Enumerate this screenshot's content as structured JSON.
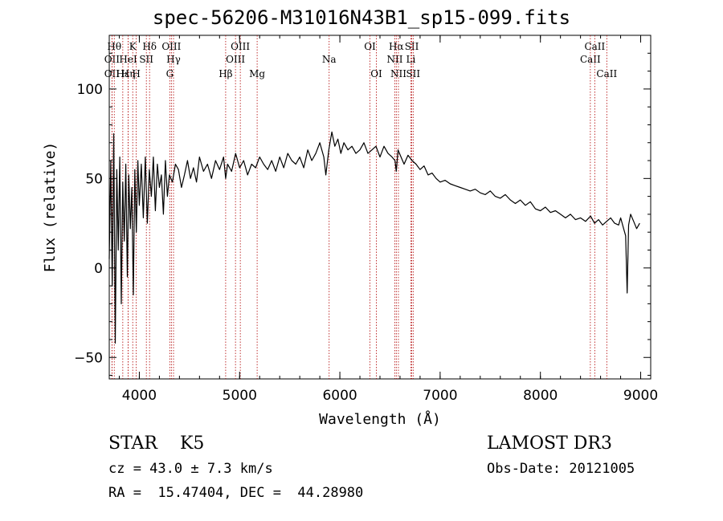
{
  "chart_data": {
    "type": "line",
    "title": "spec-56206-M31016N43B1_sp15-099.fits",
    "xlabel": "Wavelength (Å)",
    "ylabel": "Flux (relative)",
    "xlim": [
      3700,
      9100
    ],
    "ylim": [
      -62,
      130
    ],
    "xticks": [
      4000,
      5000,
      6000,
      7000,
      8000,
      9000
    ],
    "yticks": [
      -50,
      0,
      50,
      100
    ],
    "series": [
      {
        "name": "flux",
        "x": [
          3700,
          3715,
          3730,
          3745,
          3760,
          3775,
          3790,
          3805,
          3820,
          3835,
          3850,
          3865,
          3880,
          3895,
          3910,
          3925,
          3940,
          3955,
          3970,
          3985,
          4000,
          4020,
          4040,
          4060,
          4080,
          4100,
          4120,
          4140,
          4160,
          4180,
          4200,
          4220,
          4240,
          4260,
          4280,
          4300,
          4330,
          4360,
          4390,
          4420,
          4450,
          4480,
          4510,
          4540,
          4570,
          4600,
          4640,
          4680,
          4720,
          4760,
          4800,
          4840,
          4861,
          4880,
          4920,
          4960,
          5000,
          5040,
          5080,
          5120,
          5160,
          5200,
          5240,
          5280,
          5320,
          5360,
          5400,
          5440,
          5480,
          5520,
          5560,
          5600,
          5640,
          5680,
          5720,
          5760,
          5800,
          5840,
          5860,
          5890,
          5920,
          5950,
          5980,
          6010,
          6040,
          6080,
          6120,
          6160,
          6200,
          6240,
          6280,
          6320,
          6360,
          6400,
          6440,
          6480,
          6520,
          6550,
          6563,
          6580,
          6610,
          6640,
          6680,
          6720,
          6760,
          6800,
          6840,
          6880,
          6920,
          6960,
          7000,
          7050,
          7100,
          7150,
          7200,
          7250,
          7300,
          7350,
          7400,
          7450,
          7500,
          7550,
          7600,
          7650,
          7700,
          7750,
          7800,
          7850,
          7900,
          7950,
          8000,
          8050,
          8100,
          8150,
          8200,
          8250,
          8300,
          8350,
          8400,
          8450,
          8500,
          8540,
          8580,
          8620,
          8660,
          8700,
          8740,
          8780,
          8800,
          8830,
          8850,
          8865,
          8880,
          8900,
          8930,
          8960,
          8990
        ],
        "values": [
          5,
          60,
          -10,
          75,
          -42,
          55,
          10,
          62,
          -20,
          48,
          15,
          58,
          -5,
          52,
          22,
          45,
          -15,
          55,
          20,
          60,
          35,
          58,
          28,
          62,
          25,
          55,
          40,
          62,
          32,
          58,
          45,
          52,
          30,
          60,
          40,
          52,
          48,
          58,
          55,
          45,
          52,
          60,
          50,
          56,
          48,
          62,
          54,
          58,
          50,
          60,
          55,
          62,
          50,
          58,
          54,
          64,
          56,
          60,
          52,
          58,
          56,
          62,
          58,
          55,
          60,
          54,
          62,
          56,
          64,
          60,
          58,
          62,
          56,
          66,
          60,
          64,
          70,
          62,
          52,
          66,
          76,
          68,
          72,
          64,
          70,
          66,
          68,
          64,
          66,
          70,
          64,
          66,
          68,
          62,
          68,
          64,
          62,
          60,
          54,
          66,
          62,
          58,
          63,
          60,
          58,
          55,
          57,
          52,
          53,
          50,
          48,
          49,
          47,
          46,
          45,
          44,
          43,
          44,
          42,
          41,
          43,
          40,
          39,
          41,
          38,
          36,
          38,
          35,
          37,
          33,
          32,
          34,
          31,
          32,
          30,
          28,
          30,
          27,
          28,
          26,
          29,
          25,
          27,
          24,
          26,
          28,
          25,
          24,
          28,
          22,
          18,
          -14,
          24,
          30,
          26,
          22,
          25
        ]
      }
    ],
    "lines": [
      {
        "label": "OII",
        "wl": 3727,
        "row": 2
      },
      {
        "label": "OII",
        "wl": 3727,
        "row": 3
      },
      {
        "label": "Hθ",
        "wl": 3750,
        "row": 1
      },
      {
        "label": "Hε",
        "wl": 3835,
        "row": 3
      },
      {
        "label": "Hη",
        "wl": 3889,
        "row": 3
      },
      {
        "label": "HeI",
        "wl": 3889,
        "row": 2
      },
      {
        "label": "K",
        "wl": 3934,
        "row": 1
      },
      {
        "label": "H",
        "wl": 3969,
        "row": 3
      },
      {
        "label": "SII",
        "wl": 4070,
        "row": 2
      },
      {
        "label": "Hδ",
        "wl": 4102,
        "row": 1
      },
      {
        "label": "OIII",
        "wl": 4320,
        "row": 1
      },
      {
        "label": "Hγ",
        "wl": 4341,
        "row": 2
      },
      {
        "label": "G",
        "wl": 4304,
        "row": 3
      },
      {
        "label": "Hβ",
        "wl": 4861,
        "row": 3
      },
      {
        "label": "OIII",
        "wl": 4959,
        "row": 2
      },
      {
        "label": "OIII",
        "wl": 5007,
        "row": 1
      },
      {
        "label": "Mg",
        "wl": 5175,
        "row": 3
      },
      {
        "label": "Na",
        "wl": 5893,
        "row": 2
      },
      {
        "label": "OI",
        "wl": 6300,
        "row": 1
      },
      {
        "label": "OI",
        "wl": 6364,
        "row": 3
      },
      {
        "label": "NII",
        "wl": 6548,
        "row": 2
      },
      {
        "label": "Hα",
        "wl": 6563,
        "row": 1
      },
      {
        "label": "NII",
        "wl": 6584,
        "row": 3
      },
      {
        "label": "SII",
        "wl": 6717,
        "row": 1
      },
      {
        "label": "Li",
        "wl": 6708,
        "row": 2
      },
      {
        "label": "SII",
        "wl": 6731,
        "row": 3
      },
      {
        "label": "CaII",
        "wl": 8498,
        "row": 2
      },
      {
        "label": "CaII",
        "wl": 8542,
        "row": 1
      },
      {
        "label": "CaII",
        "wl": 8662,
        "row": 3
      }
    ],
    "line_color": "#b00000"
  },
  "info": {
    "class": "STAR    K5",
    "survey": "LAMOST DR3",
    "cz": "cz = 43.0 ± 7.3 km/s",
    "obsdate": "Obs-Date: 20121005",
    "radec": "RA =  15.47404, DEC =  44.28980"
  }
}
